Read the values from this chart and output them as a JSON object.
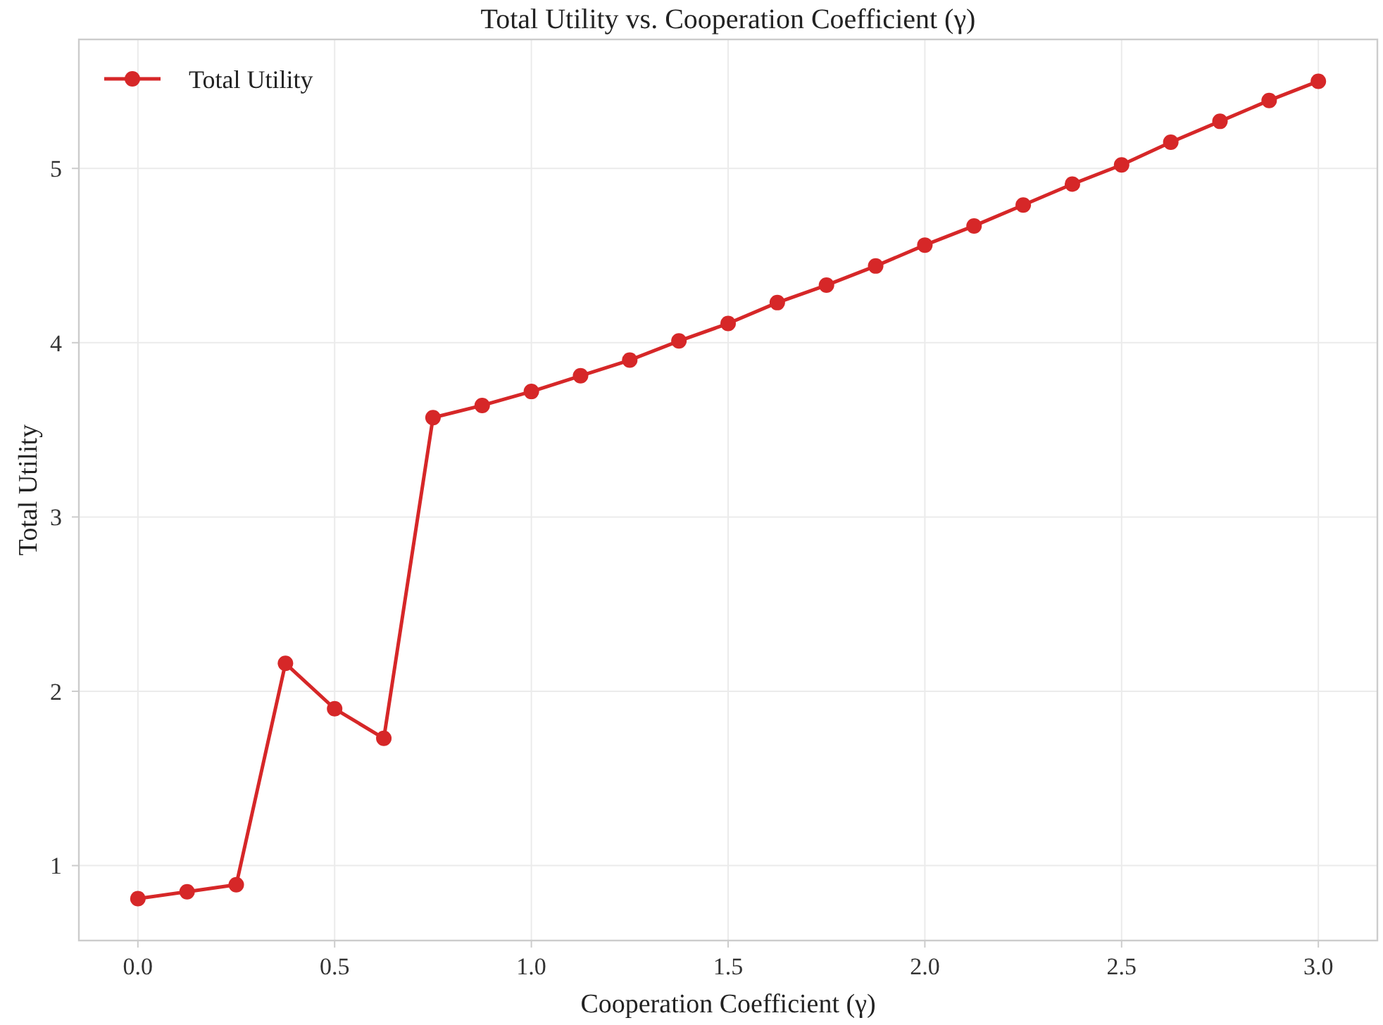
{
  "chart_data": {
    "type": "line",
    "title": "Total Utility vs. Cooperation Coefficient (γ)",
    "xlabel": "Cooperation Coefficient (γ)",
    "ylabel": "Total Utility",
    "x": [
      0,
      0.125,
      0.25,
      0.375,
      0.5,
      0.625,
      0.75,
      0.875,
      1,
      1.125,
      1.25,
      1.375,
      1.5,
      1.625,
      1.75,
      1.875,
      2,
      2.125,
      2.25,
      2.375,
      2.5,
      2.625,
      2.75,
      2.875,
      3
    ],
    "series": [
      {
        "name": "Total Utility",
        "color": "#d62728",
        "values": [
          0.81,
          0.85,
          0.89,
          2.16,
          1.9,
          1.73,
          3.57,
          3.64,
          3.72,
          3.81,
          3.9,
          4.01,
          4.11,
          4.23,
          4.33,
          4.44,
          4.56,
          4.67,
          4.79,
          4.91,
          5.02,
          5.15,
          5.27,
          5.39,
          5.5
        ]
      }
    ],
    "xlim": [
      -0.15,
      3.15
    ],
    "xticks": [
      {
        "value": 0,
        "label": "0.0"
      },
      {
        "value": 0.5,
        "label": "0.5"
      },
      {
        "value": 1,
        "label": "1.0"
      },
      {
        "value": 1.5,
        "label": "1.5"
      },
      {
        "value": 2,
        "label": "2.0"
      },
      {
        "value": 2.5,
        "label": "2.5"
      },
      {
        "value": 3,
        "label": "3.0"
      }
    ],
    "ylim": [
      0.57,
      5.74
    ],
    "yticks": [
      1,
      2,
      3,
      4,
      5
    ],
    "grid": true,
    "legend": "top left",
    "marker": "circle",
    "line_style": "solid"
  }
}
